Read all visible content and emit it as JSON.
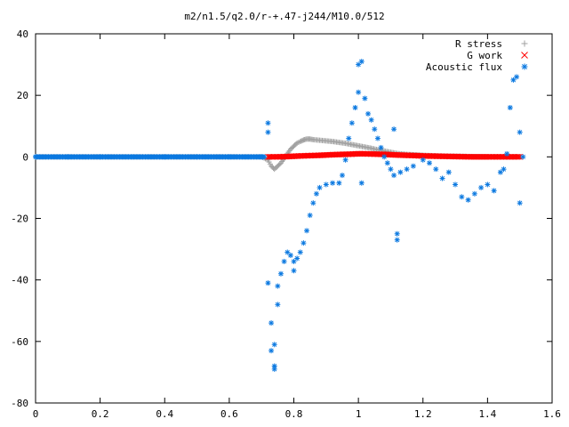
{
  "chart_data": {
    "type": "scatter",
    "title": "m2/n1.5/q2.0/r-+.47-j244/M10.0/512",
    "xlabel": "",
    "ylabel": "",
    "xlim": [
      0,
      1.6
    ],
    "ylim": [
      -80,
      40
    ],
    "x_ticks": [
      "0",
      "0.2",
      "0.4",
      "0.6",
      "0.8",
      "1",
      "1.2",
      "1.4",
      "1.6"
    ],
    "y_ticks": [
      "40",
      "20",
      "0",
      "-20",
      "-40",
      "-60",
      "-80"
    ],
    "grid": false,
    "legend_position": "top-right",
    "series": [
      {
        "name": "R stress",
        "marker": "+",
        "color": "#a0a0a0",
        "points": [
          [
            0.0,
            0
          ],
          [
            0.1,
            0
          ],
          [
            0.2,
            0
          ],
          [
            0.3,
            0
          ],
          [
            0.4,
            0
          ],
          [
            0.5,
            0
          ],
          [
            0.6,
            0
          ],
          [
            0.7,
            0
          ],
          [
            0.72,
            -1
          ],
          [
            0.73,
            -3
          ],
          [
            0.74,
            -4
          ],
          [
            0.75,
            -3
          ],
          [
            0.76,
            -2
          ],
          [
            0.77,
            -0.5
          ],
          [
            0.78,
            1
          ],
          [
            0.79,
            2.5
          ],
          [
            0.8,
            3.5
          ],
          [
            0.81,
            4.5
          ],
          [
            0.82,
            5
          ],
          [
            0.83,
            5.5
          ],
          [
            0.84,
            5.8
          ],
          [
            0.85,
            5.8
          ],
          [
            0.86,
            5.6
          ],
          [
            0.88,
            5.4
          ],
          [
            0.9,
            5.2
          ],
          [
            0.92,
            5
          ],
          [
            0.94,
            4.7
          ],
          [
            0.96,
            4.4
          ],
          [
            0.98,
            4
          ],
          [
            1.0,
            3.6
          ],
          [
            1.02,
            3.2
          ],
          [
            1.04,
            2.8
          ],
          [
            1.06,
            2.3
          ],
          [
            1.08,
            1.9
          ],
          [
            1.1,
            1.5
          ],
          [
            1.12,
            1.1
          ],
          [
            1.15,
            0.8
          ],
          [
            1.2,
            0.5
          ],
          [
            1.25,
            0.3
          ],
          [
            1.3,
            0.2
          ],
          [
            1.35,
            0.1
          ],
          [
            1.4,
            0
          ],
          [
            1.45,
            0
          ],
          [
            1.5,
            0
          ]
        ]
      },
      {
        "name": "G work",
        "marker": "x",
        "color": "#ff0000",
        "points": [
          [
            0.72,
            0
          ],
          [
            0.75,
            0
          ],
          [
            0.78,
            0.1
          ],
          [
            0.8,
            0.2
          ],
          [
            0.82,
            0.3
          ],
          [
            0.85,
            0.4
          ],
          [
            0.88,
            0.5
          ],
          [
            0.9,
            0.6
          ],
          [
            0.92,
            0.7
          ],
          [
            0.95,
            0.8
          ],
          [
            0.98,
            0.9
          ],
          [
            1.0,
            1
          ],
          [
            1.02,
            1
          ],
          [
            1.05,
            0.9
          ],
          [
            1.08,
            0.8
          ],
          [
            1.1,
            0.7
          ],
          [
            1.12,
            0.6
          ],
          [
            1.15,
            0.5
          ],
          [
            1.18,
            0.4
          ],
          [
            1.2,
            0.3
          ],
          [
            1.25,
            0.2
          ],
          [
            1.3,
            0.1
          ],
          [
            1.35,
            0
          ],
          [
            1.4,
            0
          ],
          [
            1.45,
            0
          ],
          [
            1.5,
            0
          ]
        ]
      },
      {
        "name": "Acoustic flux",
        "marker": "*",
        "color": "#0a78e0",
        "points": [
          [
            0.0,
            0
          ],
          [
            0.1,
            0
          ],
          [
            0.2,
            0
          ],
          [
            0.3,
            0
          ],
          [
            0.4,
            0
          ],
          [
            0.5,
            0
          ],
          [
            0.6,
            0
          ],
          [
            0.7,
            0
          ],
          [
            0.72,
            11
          ],
          [
            0.72,
            8
          ],
          [
            0.72,
            -41
          ],
          [
            0.73,
            -54
          ],
          [
            0.73,
            -63
          ],
          [
            0.74,
            -68
          ],
          [
            0.74,
            -69
          ],
          [
            0.74,
            -61
          ],
          [
            0.75,
            -48
          ],
          [
            0.75,
            -42
          ],
          [
            0.76,
            -38
          ],
          [
            0.77,
            -34
          ],
          [
            0.78,
            -31
          ],
          [
            0.79,
            -32
          ],
          [
            0.8,
            -34
          ],
          [
            0.8,
            -37
          ],
          [
            0.81,
            -33
          ],
          [
            0.82,
            -31
          ],
          [
            0.83,
            -28
          ],
          [
            0.84,
            -24
          ],
          [
            0.85,
            -19
          ],
          [
            0.86,
            -15
          ],
          [
            0.87,
            -12
          ],
          [
            0.88,
            -10
          ],
          [
            0.9,
            -9
          ],
          [
            0.92,
            -8.5
          ],
          [
            0.94,
            -8.5
          ],
          [
            0.95,
            -6
          ],
          [
            0.96,
            -1
          ],
          [
            0.97,
            6
          ],
          [
            0.98,
            11
          ],
          [
            0.99,
            16
          ],
          [
            1.0,
            21
          ],
          [
            1.0,
            30
          ],
          [
            1.01,
            31
          ],
          [
            1.01,
            -8.5
          ],
          [
            1.02,
            19
          ],
          [
            1.03,
            14
          ],
          [
            1.04,
            12
          ],
          [
            1.05,
            9
          ],
          [
            1.06,
            6
          ],
          [
            1.07,
            3
          ],
          [
            1.08,
            0
          ],
          [
            1.09,
            -2
          ],
          [
            1.1,
            -4
          ],
          [
            1.11,
            -6
          ],
          [
            1.11,
            9
          ],
          [
            1.12,
            -25
          ],
          [
            1.12,
            -27
          ],
          [
            1.13,
            -5
          ],
          [
            1.15,
            -4
          ],
          [
            1.17,
            -3
          ],
          [
            1.2,
            -1
          ],
          [
            1.22,
            -2
          ],
          [
            1.24,
            -4
          ],
          [
            1.26,
            -7
          ],
          [
            1.28,
            -5
          ],
          [
            1.3,
            -9
          ],
          [
            1.32,
            -13
          ],
          [
            1.34,
            -14
          ],
          [
            1.36,
            -12
          ],
          [
            1.38,
            -10
          ],
          [
            1.4,
            -9
          ],
          [
            1.42,
            -11
          ],
          [
            1.44,
            -5
          ],
          [
            1.45,
            -4
          ],
          [
            1.46,
            1
          ],
          [
            1.47,
            16
          ],
          [
            1.48,
            25
          ],
          [
            1.49,
            26
          ],
          [
            1.5,
            -15
          ],
          [
            1.5,
            8
          ],
          [
            1.51,
            0
          ]
        ]
      }
    ]
  }
}
